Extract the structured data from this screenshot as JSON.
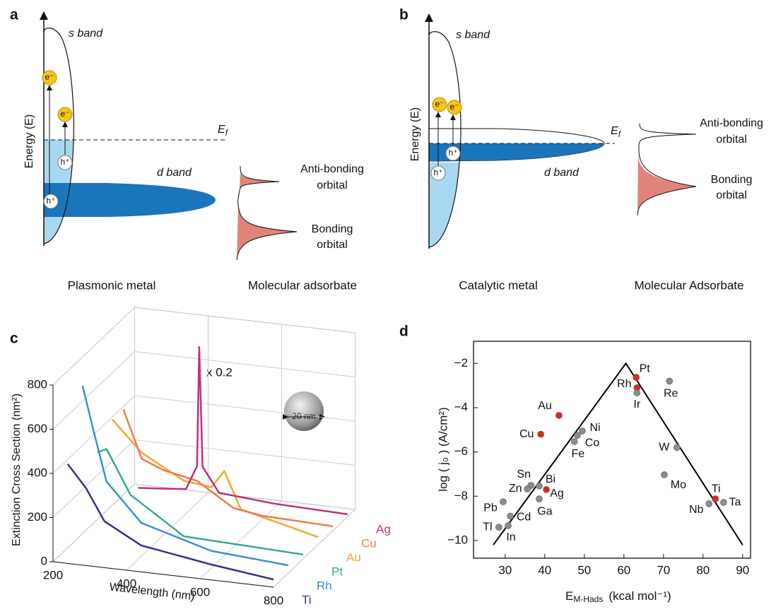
{
  "diagrams": [
    {
      "panel_label": "a",
      "energy_label": "Energy (E)",
      "s_band": "s band",
      "d_band": "d band",
      "fermi": [
        "E",
        "f"
      ],
      "electron": "e⁻",
      "hole": "h⁺",
      "antibonding": [
        "Anti-bonding",
        "orbital"
      ],
      "bonding": [
        "Bonding",
        "orbital"
      ],
      "caption_left": "Plasmonic metal",
      "caption_right": "Molecular adsorbate"
    },
    {
      "panel_label": "b",
      "energy_label": "Energy (E)",
      "s_band": "s band",
      "d_band": "d band",
      "fermi": [
        "E",
        "f"
      ],
      "electron": "e⁻",
      "hole": "h⁺",
      "antibonding": [
        "Anti-bonding",
        "orbital"
      ],
      "bonding": [
        "Bonding",
        "orbital"
      ],
      "caption_left": "Catalytic metal",
      "caption_right": "Molecular Adsorbate"
    }
  ],
  "chart_data": [
    {
      "type": "line3d",
      "panel_label": "c",
      "ylabel": "Extinction Cross Section (nm²)",
      "xlabel": "Wavelength (nm)",
      "annotation": "x 0.2",
      "inset_label": "20 nm",
      "xlim": [
        200,
        800
      ],
      "ylim": [
        0,
        800
      ],
      "xticks": [
        200,
        400,
        600,
        800
      ],
      "yticks": [
        0,
        200,
        400,
        600,
        800
      ],
      "grid": true,
      "series": [
        {
          "name": "Ti",
          "color": "#3b2a8f",
          "x": [
            240,
            290,
            340,
            440,
            630,
            800
          ],
          "values": [
            450,
            350,
            210,
            120,
            70,
            35
          ]
        },
        {
          "name": "Rh",
          "color": "#3a8fd6",
          "x": [
            240,
            275,
            305,
            400,
            590,
            800
          ],
          "values": [
            740,
            510,
            320,
            150,
            60,
            35
          ]
        },
        {
          "name": "Pt",
          "color": "#34aa8c",
          "x": [
            240,
            265,
            330,
            430,
            475,
            800
          ],
          "values": [
            375,
            395,
            200,
            90,
            40,
            20
          ]
        },
        {
          "name": "Au",
          "color": "#f0a830",
          "x": [
            240,
            320,
            435,
            510,
            545,
            590,
            800
          ],
          "values": [
            460,
            325,
            220,
            205,
            285,
            120,
            35
          ]
        },
        {
          "name": "Cu",
          "color": "#f07a50",
          "x": [
            230,
            280,
            340,
            430,
            530,
            610,
            800
          ],
          "values": [
            440,
            225,
            185,
            155,
            50,
            30,
            20
          ]
        },
        {
          "name": "Ag",
          "color": "#c0307a",
          "x": [
            230,
            300,
            360,
            390,
            396,
            405,
            450,
            600,
            800
          ],
          "values": [
            20,
            30,
            40,
            150,
            690,
            150,
            40,
            20,
            10
          ]
        }
      ]
    },
    {
      "type": "scatter",
      "panel_label": "d",
      "ylabel": "log ( j₀ ) (A/cm²)",
      "xlabel_parts": [
        "E",
        "M-Hads",
        "(kcal mol⁻¹)"
      ],
      "xlim": [
        22,
        92
      ],
      "ylim": [
        -10.8,
        -1
      ],
      "xticks": [
        30,
        40,
        50,
        60,
        70,
        80,
        90
      ],
      "yticks": [
        {
          "value": -10,
          "label": "−10"
        },
        {
          "value": -8,
          "label": "−8"
        },
        {
          "value": -6,
          "label": "−6"
        },
        {
          "value": -4,
          "label": "−4"
        },
        {
          "value": -2,
          "label": "−2"
        }
      ],
      "labels": [
        "Pt",
        "Rh",
        "Ir",
        "Re",
        "Au",
        "Cu",
        "Ni",
        "Co",
        "Fe",
        "W",
        "Mo",
        "Ti",
        "Ta",
        "Nb",
        "Sn",
        "Zn",
        "Bi",
        "Ag",
        "Ga",
        "Pb",
        "Cd",
        "Tl",
        "In"
      ],
      "x": [
        63.1,
        63.3,
        63.3,
        71.5,
        43.6,
        39,
        49.5,
        48.25,
        47.5,
        73.4,
        70.2,
        83.1,
        85.2,
        81.5,
        36.5,
        35.6,
        38.6,
        40.4,
        38.6,
        29.5,
        31.3,
        28.4,
        30.75
      ],
      "values": [
        -2.63,
        -3.1,
        -3.33,
        -2.8,
        -4.35,
        -5.2,
        -5.05,
        -5.25,
        -5.53,
        -5.8,
        -7.03,
        -8.12,
        -8.28,
        -8.34,
        -7.51,
        -7.67,
        -7.54,
        -7.7,
        -8.12,
        -8.25,
        -8.9,
        -9.4,
        -9.33
      ],
      "colors": [
        "#e8231f",
        "#e8231f",
        "#8c8c8c",
        "#8c8c8c",
        "#e8231f",
        "#e8231f",
        "#8c8c8c",
        "#8c8c8c",
        "#8c8c8c",
        "#8c8c8c",
        "#8c8c8c",
        "#e8231f",
        "#8c8c8c",
        "#8c8c8c",
        "#8c8c8c",
        "#8c8c8c",
        "#8c8c8c",
        "#e8231f",
        "#8c8c8c",
        "#8c8c8c",
        "#8c8c8c",
        "#8c8c8c",
        "#8c8c8c"
      ],
      "trend": {
        "x": [
          27,
          60.5,
          90
        ],
        "values": [
          -10.2,
          -2,
          -10.2
        ],
        "color": "#000000"
      }
    }
  ]
}
